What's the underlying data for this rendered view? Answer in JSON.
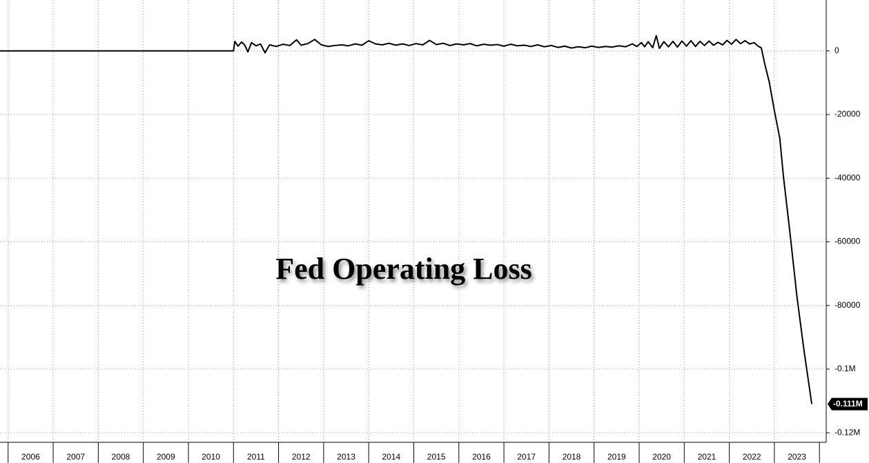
{
  "chart_data": {
    "type": "line",
    "title": "Fed Operating Loss",
    "xlim": [
      2005.82,
      2024.15
    ],
    "xticks": [
      2006,
      2007,
      2008,
      2009,
      2010,
      2011,
      2012,
      2013,
      2014,
      2015,
      2016,
      2017,
      2018,
      2019,
      2020,
      2021,
      2022,
      2023
    ],
    "ylim": [
      -123000,
      16000
    ],
    "yticks": [
      0,
      -20000,
      -40000,
      -60000,
      -80000,
      {
        "value": -100000,
        "label": "-0.1M"
      },
      {
        "value": -120000,
        "label": "-0.12M"
      }
    ],
    "grid": true,
    "last_label": {
      "value": -111000,
      "label": "-0.111M"
    },
    "series": [
      {
        "color": "#000000",
        "x": [
          2005.82,
          2011.0,
          2011.03,
          2011.1,
          2011.18,
          2011.25,
          2011.32,
          2011.4,
          2011.5,
          2011.6,
          2011.7,
          2011.8,
          2011.95,
          2012.1,
          2012.25,
          2012.4,
          2012.5,
          2012.65,
          2012.8,
          2012.95,
          2013.1,
          2013.25,
          2013.4,
          2013.55,
          2013.7,
          2013.85,
          2014.0,
          2014.15,
          2014.3,
          2014.45,
          2014.6,
          2014.75,
          2014.9,
          2015.05,
          2015.2,
          2015.35,
          2015.5,
          2015.65,
          2015.8,
          2015.95,
          2016.1,
          2016.25,
          2016.4,
          2016.55,
          2016.7,
          2016.85,
          2017.0,
          2017.15,
          2017.3,
          2017.45,
          2017.6,
          2017.75,
          2017.9,
          2018.05,
          2018.2,
          2018.35,
          2018.5,
          2018.65,
          2018.8,
          2018.95,
          2019.1,
          2019.25,
          2019.4,
          2019.55,
          2019.7,
          2019.85,
          2019.95,
          2020.05,
          2020.12,
          2020.2,
          2020.3,
          2020.38,
          2020.45,
          2020.55,
          2020.65,
          2020.75,
          2020.85,
          2020.95,
          2021.05,
          2021.15,
          2021.25,
          2021.35,
          2021.45,
          2021.55,
          2021.65,
          2021.75,
          2021.85,
          2021.95,
          2022.05,
          2022.15,
          2022.25,
          2022.35,
          2022.45,
          2022.55,
          2022.65,
          2022.71,
          2022.78,
          2022.89,
          2023.0,
          2023.12,
          2023.2,
          2023.35,
          2023.5,
          2023.66,
          2023.83
        ],
        "values": [
          0,
          0,
          3000,
          1500,
          2800,
          1800,
          -300,
          2600,
          1600,
          2200,
          -600,
          1900,
          1400,
          2100,
          1700,
          3500,
          1800,
          2300,
          3600,
          1900,
          1400,
          1700,
          1900,
          1600,
          2200,
          1800,
          3200,
          2200,
          1900,
          2400,
          1800,
          2200,
          1700,
          2300,
          1900,
          3300,
          2000,
          2400,
          1700,
          2200,
          1900,
          2300,
          1600,
          2100,
          1800,
          2000,
          1500,
          2100,
          1600,
          1800,
          1400,
          1900,
          1300,
          1700,
          1100,
          1500,
          900,
          1300,
          1000,
          1500,
          1100,
          1400,
          1200,
          1600,
          1300,
          2200,
          1400,
          2600,
          1300,
          2900,
          1000,
          4800,
          800,
          2900,
          1300,
          3000,
          1200,
          3100,
          1500,
          3200,
          1400,
          3000,
          1700,
          3100,
          1800,
          2700,
          1900,
          3300,
          2100,
          3600,
          2300,
          3200,
          2200,
          2600,
          1400,
          1000,
          -3700,
          -10000,
          -18800,
          -27400,
          -39300,
          -57700,
          -77100,
          -94400,
          -111000
        ]
      }
    ]
  }
}
